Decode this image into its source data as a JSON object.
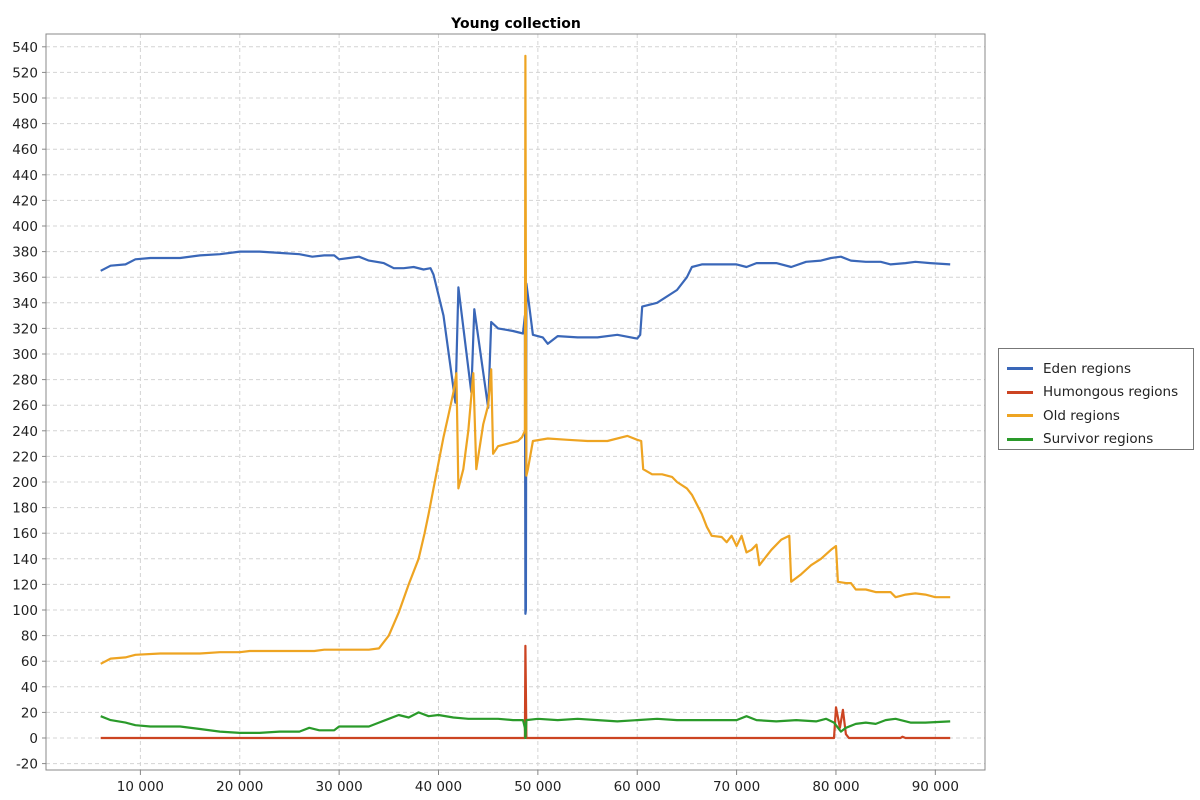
{
  "chart_data": {
    "type": "line",
    "title": "Young collection",
    "xlabel": "",
    "ylabel": "",
    "xlim": [
      500,
      95000
    ],
    "ylim": [
      -25,
      550
    ],
    "x_ticks": [
      10000,
      20000,
      30000,
      40000,
      50000,
      60000,
      70000,
      80000,
      90000
    ],
    "x_tick_labels": [
      "10 000",
      "20 000",
      "30 000",
      "40 000",
      "50 000",
      "60 000",
      "70 000",
      "80 000",
      "90 000"
    ],
    "y_ticks": [
      -20,
      0,
      20,
      40,
      60,
      80,
      100,
      120,
      140,
      160,
      180,
      200,
      220,
      240,
      260,
      280,
      300,
      320,
      340,
      360,
      380,
      400,
      420,
      440,
      460,
      480,
      500,
      520,
      540
    ],
    "grid": true,
    "legend_position": "right",
    "series": [
      {
        "name": "Eden regions",
        "color": "#3a67b8",
        "points": [
          [
            6000,
            365
          ],
          [
            7000,
            369
          ],
          [
            8500,
            370
          ],
          [
            9500,
            374
          ],
          [
            11000,
            375
          ],
          [
            14000,
            375
          ],
          [
            16000,
            377
          ],
          [
            18000,
            378
          ],
          [
            20000,
            380
          ],
          [
            22000,
            380
          ],
          [
            24000,
            379
          ],
          [
            26000,
            378
          ],
          [
            27300,
            376
          ],
          [
            28500,
            377
          ],
          [
            29500,
            377
          ],
          [
            30000,
            374
          ],
          [
            31000,
            375
          ],
          [
            32000,
            376
          ],
          [
            33000,
            373
          ],
          [
            34500,
            371
          ],
          [
            35500,
            367
          ],
          [
            36500,
            367
          ],
          [
            37500,
            368
          ],
          [
            38500,
            366
          ],
          [
            39200,
            367
          ],
          [
            39500,
            362
          ],
          [
            40500,
            330
          ],
          [
            41700,
            262
          ],
          [
            42000,
            352
          ],
          [
            43300,
            270
          ],
          [
            43600,
            335
          ],
          [
            45000,
            258
          ],
          [
            45300,
            325
          ],
          [
            46000,
            320
          ],
          [
            47500,
            318
          ],
          [
            48500,
            316
          ],
          [
            48700,
            330
          ],
          [
            48750,
            97
          ],
          [
            48800,
            100
          ],
          [
            48850,
            355
          ],
          [
            49500,
            315
          ],
          [
            50500,
            313
          ],
          [
            51000,
            308
          ],
          [
            52000,
            314
          ],
          [
            54000,
            313
          ],
          [
            56000,
            313
          ],
          [
            58000,
            315
          ],
          [
            60000,
            312
          ],
          [
            60300,
            315
          ],
          [
            60500,
            337
          ],
          [
            62000,
            340
          ],
          [
            64000,
            350
          ],
          [
            65000,
            360
          ],
          [
            65500,
            368
          ],
          [
            66500,
            370
          ],
          [
            68000,
            370
          ],
          [
            70000,
            370
          ],
          [
            71000,
            368
          ],
          [
            72000,
            371
          ],
          [
            74000,
            371
          ],
          [
            75500,
            368
          ],
          [
            77000,
            372
          ],
          [
            78500,
            373
          ],
          [
            79500,
            375
          ],
          [
            80500,
            376
          ],
          [
            81500,
            373
          ],
          [
            83000,
            372
          ],
          [
            84500,
            372
          ],
          [
            85500,
            370
          ],
          [
            87000,
            371
          ],
          [
            88000,
            372
          ],
          [
            89500,
            371
          ],
          [
            91500,
            370
          ]
        ]
      },
      {
        "name": "Humongous regions",
        "color": "#cc4422",
        "points": [
          [
            6000,
            0
          ],
          [
            48500,
            0
          ],
          [
            48700,
            0
          ],
          [
            48750,
            72
          ],
          [
            48850,
            0
          ],
          [
            55000,
            0
          ],
          [
            70000,
            0
          ],
          [
            79800,
            0
          ],
          [
            80000,
            24
          ],
          [
            80400,
            8
          ],
          [
            80700,
            22
          ],
          [
            81000,
            3
          ],
          [
            81300,
            0
          ],
          [
            86500,
            0
          ],
          [
            86700,
            1
          ],
          [
            87000,
            0
          ],
          [
            91500,
            0
          ]
        ]
      },
      {
        "name": "Old regions",
        "color": "#eea422",
        "points": [
          [
            6000,
            58
          ],
          [
            7000,
            62
          ],
          [
            8500,
            63
          ],
          [
            9500,
            65
          ],
          [
            12000,
            66
          ],
          [
            16000,
            66
          ],
          [
            18000,
            67
          ],
          [
            20000,
            67
          ],
          [
            21000,
            68
          ],
          [
            25000,
            68
          ],
          [
            27500,
            68
          ],
          [
            28500,
            69
          ],
          [
            30000,
            69
          ],
          [
            33000,
            69
          ],
          [
            34000,
            70
          ],
          [
            35000,
            80
          ],
          [
            36000,
            98
          ],
          [
            37000,
            120
          ],
          [
            38000,
            140
          ],
          [
            38600,
            160
          ],
          [
            39000,
            175
          ],
          [
            39500,
            195
          ],
          [
            40000,
            215
          ],
          [
            40500,
            235
          ],
          [
            41000,
            252
          ],
          [
            41500,
            270
          ],
          [
            41800,
            285
          ],
          [
            42000,
            195
          ],
          [
            42500,
            210
          ],
          [
            43000,
            240
          ],
          [
            43500,
            285
          ],
          [
            43800,
            210
          ],
          [
            44500,
            245
          ],
          [
            45000,
            260
          ],
          [
            45300,
            288
          ],
          [
            45500,
            222
          ],
          [
            46000,
            228
          ],
          [
            47000,
            230
          ],
          [
            48000,
            232
          ],
          [
            48400,
            235
          ],
          [
            48700,
            240
          ],
          [
            48750,
            533
          ],
          [
            48800,
            350
          ],
          [
            48850,
            205
          ],
          [
            49000,
            210
          ],
          [
            49500,
            232
          ],
          [
            51000,
            234
          ],
          [
            53000,
            233
          ],
          [
            55000,
            232
          ],
          [
            57000,
            232
          ],
          [
            59000,
            236
          ],
          [
            60000,
            233
          ],
          [
            60400,
            232
          ],
          [
            60600,
            210
          ],
          [
            61500,
            206
          ],
          [
            62500,
            206
          ],
          [
            63500,
            204
          ],
          [
            64000,
            200
          ],
          [
            65000,
            195
          ],
          [
            65500,
            190
          ],
          [
            66500,
            175
          ],
          [
            67000,
            165
          ],
          [
            67500,
            158
          ],
          [
            68500,
            157
          ],
          [
            69000,
            153
          ],
          [
            69500,
            158
          ],
          [
            70000,
            150
          ],
          [
            70500,
            158
          ],
          [
            71000,
            145
          ],
          [
            71500,
            147
          ],
          [
            72000,
            151
          ],
          [
            72300,
            135
          ],
          [
            73000,
            142
          ],
          [
            73500,
            147
          ],
          [
            74500,
            155
          ],
          [
            75300,
            158
          ],
          [
            75500,
            122
          ],
          [
            76500,
            128
          ],
          [
            77500,
            135
          ],
          [
            78500,
            140
          ],
          [
            79500,
            147
          ],
          [
            80000,
            150
          ],
          [
            80200,
            122
          ],
          [
            81000,
            121
          ],
          [
            81500,
            121
          ],
          [
            82000,
            116
          ],
          [
            83000,
            116
          ],
          [
            84000,
            114
          ],
          [
            85000,
            114
          ],
          [
            85500,
            114
          ],
          [
            86000,
            110
          ],
          [
            86500,
            111
          ],
          [
            87000,
            112
          ],
          [
            88000,
            113
          ],
          [
            89000,
            112
          ],
          [
            90000,
            110
          ],
          [
            91500,
            110
          ]
        ]
      },
      {
        "name": "Survivor regions",
        "color": "#2a9a2a",
        "points": [
          [
            6000,
            17
          ],
          [
            7000,
            14
          ],
          [
            8500,
            12
          ],
          [
            9500,
            10
          ],
          [
            11000,
            9
          ],
          [
            14000,
            9
          ],
          [
            16000,
            7
          ],
          [
            18000,
            5
          ],
          [
            20000,
            4
          ],
          [
            22000,
            4
          ],
          [
            24000,
            5
          ],
          [
            26000,
            5
          ],
          [
            27000,
            8
          ],
          [
            28000,
            6
          ],
          [
            29500,
            6
          ],
          [
            30000,
            9
          ],
          [
            33000,
            9
          ],
          [
            34000,
            12
          ],
          [
            35000,
            15
          ],
          [
            36000,
            18
          ],
          [
            37000,
            16
          ],
          [
            38000,
            20
          ],
          [
            39000,
            17
          ],
          [
            40000,
            18
          ],
          [
            41500,
            16
          ],
          [
            43000,
            15
          ],
          [
            44500,
            15
          ],
          [
            46000,
            15
          ],
          [
            47500,
            14
          ],
          [
            48500,
            14
          ],
          [
            48700,
            8
          ],
          [
            48750,
            0
          ],
          [
            48850,
            14
          ],
          [
            50000,
            15
          ],
          [
            52000,
            14
          ],
          [
            54000,
            15
          ],
          [
            56000,
            14
          ],
          [
            58000,
            13
          ],
          [
            60000,
            14
          ],
          [
            62000,
            15
          ],
          [
            64000,
            14
          ],
          [
            66000,
            14
          ],
          [
            68000,
            14
          ],
          [
            70000,
            14
          ],
          [
            71000,
            17
          ],
          [
            72000,
            14
          ],
          [
            74000,
            13
          ],
          [
            76000,
            14
          ],
          [
            78000,
            13
          ],
          [
            79000,
            15
          ],
          [
            79800,
            12
          ],
          [
            80500,
            5
          ],
          [
            81000,
            8
          ],
          [
            82000,
            11
          ],
          [
            83000,
            12
          ],
          [
            84000,
            11
          ],
          [
            85000,
            14
          ],
          [
            86000,
            15
          ],
          [
            87500,
            12
          ],
          [
            89000,
            12
          ],
          [
            91500,
            13
          ]
        ]
      }
    ]
  }
}
